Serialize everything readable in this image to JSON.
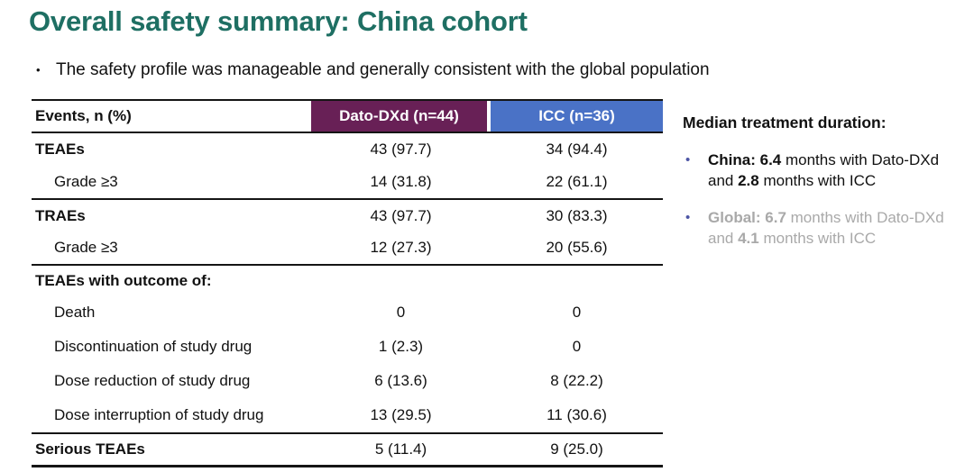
{
  "slide": {
    "title": "Overall safety summary: China cohort",
    "bullet": "The safety profile was manageable and generally consistent with the global population"
  },
  "table": {
    "header": {
      "events": "Events, n (%)",
      "dato": "Dato-DXd (n=44)",
      "icc": "ICC (n=36)"
    },
    "rows": [
      {
        "label": "TEAEs",
        "dato": "43 (97.7)",
        "icc": "34 (94.4)"
      },
      {
        "label": "Grade ≥3",
        "dato": "14 (31.8)",
        "icc": "22 (61.1)"
      },
      {
        "label": "TRAEs",
        "dato": "43 (97.7)",
        "icc": "30 (83.3)"
      },
      {
        "label": "Grade ≥3",
        "dato": "12 (27.3)",
        "icc": "20 (55.6)"
      },
      {
        "label": "TEAEs with outcome of:",
        "dato": "",
        "icc": ""
      },
      {
        "label": "Death",
        "dato": "0",
        "icc": "0"
      },
      {
        "label": "Discontinuation of study drug",
        "dato": "1 (2.3)",
        "icc": "0"
      },
      {
        "label": "Dose reduction of study drug",
        "dato": "6 (13.6)",
        "icc": "8 (22.2)"
      },
      {
        "label": "Dose interruption of study drug",
        "dato": "13 (29.5)",
        "icc": "11 (30.6)"
      },
      {
        "label": "Serious TEAEs",
        "dato": "5 (11.4)",
        "icc": "9 (25.0)"
      }
    ]
  },
  "sidebar": {
    "heading": "Median treatment duration:",
    "china": {
      "label": "China: ",
      "v1": "6.4",
      "t1": " months with Dato-DXd and ",
      "v2": "2.8",
      "t2": " months with ICC"
    },
    "global": {
      "label": "Global: ",
      "v1": "6.7",
      "t1": " months with Dato-DXd and ",
      "v2": "4.1",
      "t2": " months with ICC"
    }
  },
  "colors": {
    "title_color": "#1E6F63",
    "dato_bg": "#682056",
    "icc_bg": "#4A72C6",
    "accent_bullet": "#4C55A5",
    "muted_text": "#A9A9A9"
  }
}
